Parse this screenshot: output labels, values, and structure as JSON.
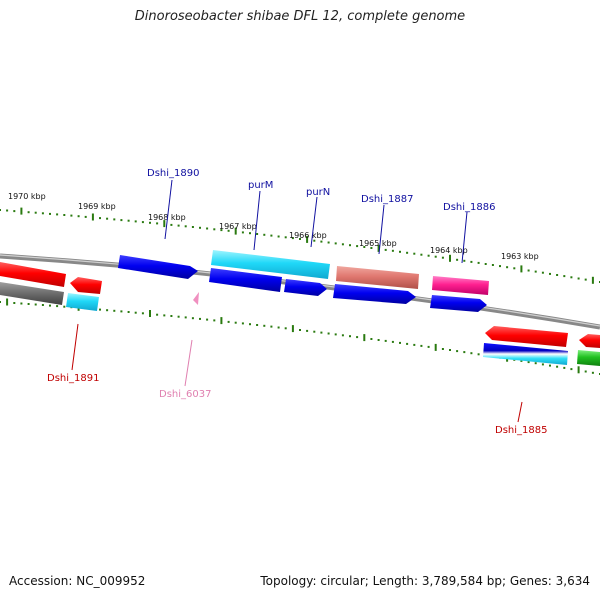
{
  "title": "Dinoroseobacter shibae DFL 12, complete genome",
  "footer": {
    "accession": "Accession: NC_009952",
    "summary": "Topology: circular; Length: 3,789,584 bp; Genes: 3,634"
  },
  "scale_labels": [
    "1970 kbp",
    "1969 kbp",
    "1968 kbp",
    "1967 kbp",
    "1966 kbp",
    "1965 kbp",
    "1964 kbp",
    "1963 kbp"
  ],
  "gene_labels": {
    "Dshi_1890": "Dshi_1890",
    "purM": "purM",
    "purN": "purN",
    "Dshi_1887": "Dshi_1887",
    "Dshi_1886": "Dshi_1886",
    "Dshi_1891": "Dshi_1891",
    "Dshi_6037": "Dshi_6037",
    "Dshi_1885": "Dshi_1885"
  },
  "colors": {
    "label_blue": "#1010a0",
    "label_red": "#c00000",
    "label_pink": "#e080b0",
    "tick_green": "#2a7a10",
    "backbone": "#888888"
  }
}
